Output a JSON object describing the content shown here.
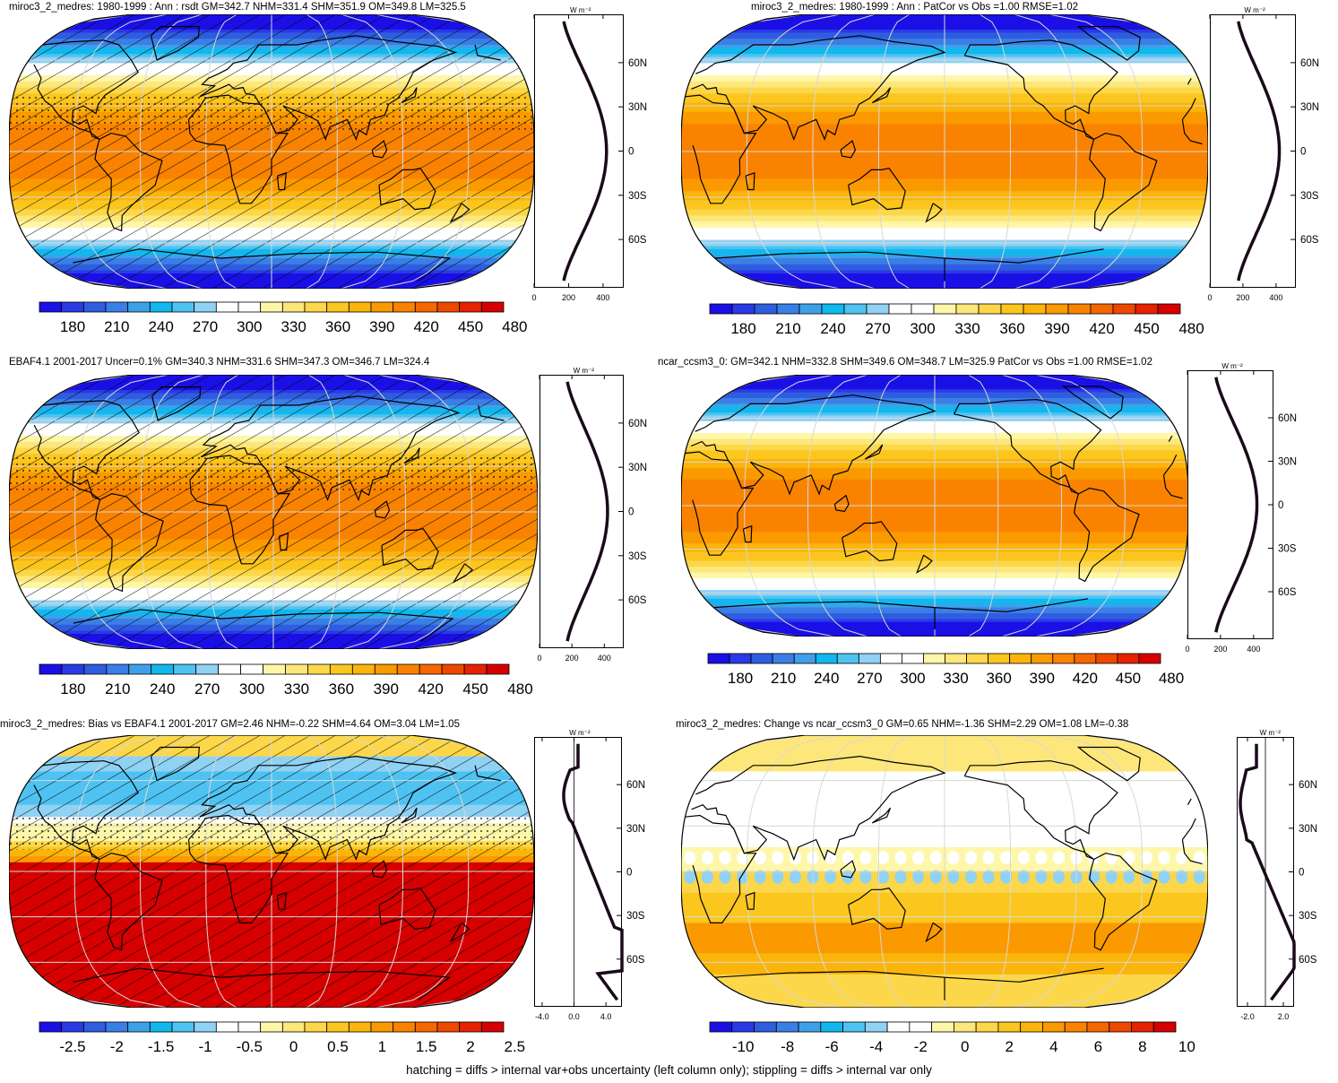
{
  "figure": {
    "footnote": "hatching = diffs > internal var+obs uncertainty (left column only); stippling = diffs > internal var only"
  },
  "colors": {
    "abs_palette": [
      "#1a10e6",
      "#2a3ae6",
      "#2f5de0",
      "#3a7fe6",
      "#3fa0ea",
      "#10b8ee",
      "#4ec3f2",
      "#8fd2f4",
      "#ffffff",
      "#ffffff",
      "#fef7a9",
      "#fde77a",
      "#fcd74a",
      "#fbc61e",
      "#fbb40a",
      "#fa9a00",
      "#f98300",
      "#f56700",
      "#ee4800",
      "#e62200",
      "#d60000"
    ],
    "diff_palette": [
      "#1a10e6",
      "#2a3ae6",
      "#2f5de0",
      "#3a7fe6",
      "#3fa0ea",
      "#10b8ee",
      "#4ec3f2",
      "#8fd2f4",
      "#ffffff",
      "#ffffff",
      "#fef7a9",
      "#fde77a",
      "#fcd74a",
      "#fbc61e",
      "#fbb40a",
      "#fa9a00",
      "#f98300",
      "#f56700",
      "#ee4800",
      "#e62200",
      "#d60000"
    ],
    "land_outline": "#000000",
    "grid_line": "#d8d8d8"
  },
  "panels": [
    {
      "id": "model",
      "title": "miroc3_2_medres: 1980-1999 : Ann : rsdt GM=342.7 NHM=331.4 SHM=351.9 OM=349.8 LM=325.5",
      "colorbar_labels": [
        "180",
        "210",
        "240",
        "270",
        "300",
        "330",
        "360",
        "390",
        "420",
        "450",
        "480"
      ],
      "zonal_units": "W m⁻²",
      "zonal_ticks": [
        "0",
        "200",
        "400"
      ],
      "lat_ticks": [
        "60N",
        "30N",
        "0",
        "30S",
        "60S"
      ],
      "overlay": "hatch+stipple",
      "map_field": "abs",
      "zonal_profile": "abs"
    },
    {
      "id": "model-vs-obs",
      "title": "miroc3_2_medres: 1980-1999 : Ann : PatCor vs Obs =1.00 RMSE=1.02",
      "colorbar_labels": [
        "180",
        "210",
        "240",
        "270",
        "300",
        "330",
        "360",
        "390",
        "420",
        "450",
        "480"
      ],
      "zonal_units": "W m⁻²",
      "zonal_ticks": [
        "0",
        "200",
        "400"
      ],
      "lat_ticks": [
        "60N",
        "30N",
        "0",
        "30S",
        "60S"
      ],
      "overlay": "none",
      "map_field": "abs",
      "zonal_profile": "abs"
    },
    {
      "id": "obs",
      "title": "EBAF4.1 2001-2017 Uncer=0.1% GM=340.3 NHM=331.6 SHM=347.3 OM=346.7 LM=324.4",
      "colorbar_labels": [
        "180",
        "210",
        "240",
        "270",
        "300",
        "330",
        "360",
        "390",
        "420",
        "450",
        "480"
      ],
      "zonal_units": "W m⁻²",
      "zonal_ticks": [
        "0",
        "200",
        "400"
      ],
      "lat_ticks": [
        "60N",
        "30N",
        "0",
        "30S",
        "60S"
      ],
      "overlay": "hatch+stipple",
      "map_field": "abs",
      "zonal_profile": "abs"
    },
    {
      "id": "reference-model",
      "title": "ncar_ccsm3_0: GM=342.1 NHM=332.8 SHM=349.6 OM=348.7 LM=325.9 PatCor vs Obs =1.00 RMSE=1.02",
      "colorbar_labels": [
        "180",
        "210",
        "240",
        "270",
        "300",
        "330",
        "360",
        "390",
        "420",
        "450",
        "480"
      ],
      "zonal_units": "W m⁻²",
      "zonal_ticks": [
        "0",
        "200",
        "400"
      ],
      "lat_ticks": [
        "60N",
        "30N",
        "0",
        "30S",
        "60S"
      ],
      "overlay": "none",
      "map_field": "abs",
      "zonal_profile": "abs"
    },
    {
      "id": "bias",
      "title": "miroc3_2_medres: Bias vs EBAF4.1 2001-2017 GM=2.46 NHM=-0.22 SHM=4.64 OM=3.04 LM=1.05",
      "colorbar_labels": [
        "-2.5",
        "-2",
        "-1.5",
        "-1",
        "-0.5",
        "0",
        "0.5",
        "1",
        "1.5",
        "2",
        "2.5"
      ],
      "zonal_units": "W m⁻²",
      "zonal_ticks": [
        "-4.0",
        "0.0",
        "4.0"
      ],
      "lat_ticks": [
        "60N",
        "30N",
        "0",
        "30S",
        "60S"
      ],
      "overlay": "hatch+stipple",
      "map_field": "bias",
      "zonal_profile": "bias"
    },
    {
      "id": "change",
      "title": "miroc3_2_medres: Change vs ncar_ccsm3_0 GM=0.65 NHM=-1.36 SHM=2.29 OM=1.08 LM=-0.38",
      "colorbar_labels": [
        "-10",
        "-8",
        "-6",
        "-4",
        "-2",
        "0",
        "2",
        "4",
        "6",
        "8",
        "10"
      ],
      "zonal_units": "W m⁻²",
      "zonal_ticks": [
        "-2.0",
        "2.0"
      ],
      "lat_ticks": [
        "60N",
        "30N",
        "0",
        "30S",
        "60S"
      ],
      "overlay": "none",
      "map_field": "change",
      "zonal_profile": "change"
    }
  ]
}
